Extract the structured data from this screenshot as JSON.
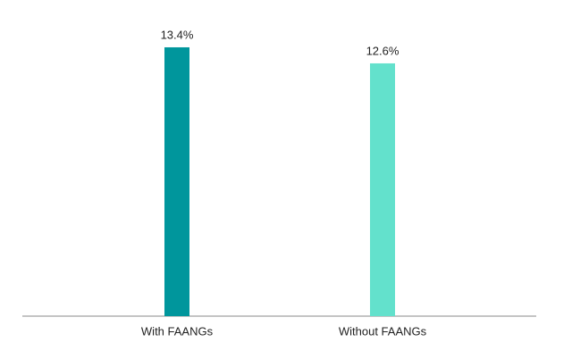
{
  "chart_data": {
    "type": "bar",
    "categories": [
      "With FAANGs",
      "Without FAANGs"
    ],
    "values": [
      13.4,
      12.6
    ],
    "value_labels": [
      "13.4%",
      "12.6%"
    ],
    "colors": [
      "#00969c",
      "#63e1cc"
    ],
    "ylim": [
      0,
      14
    ]
  }
}
